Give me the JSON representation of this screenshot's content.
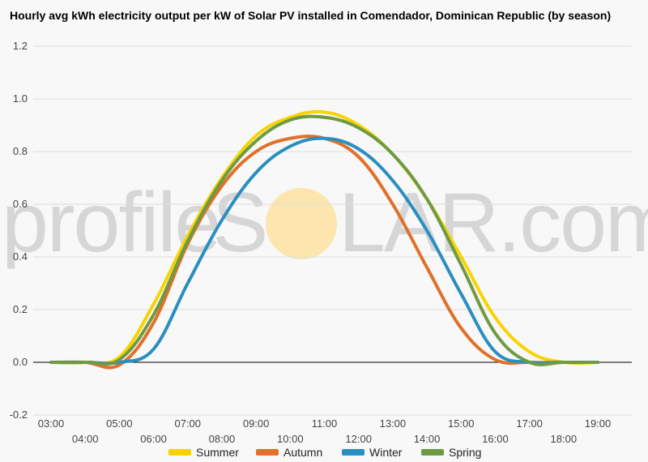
{
  "chart_data": {
    "type": "line",
    "title": "Hourly avg kWh electricity output per kW of Solar PV installed in Comendador, Dominican Republic (by season)",
    "xlabel": "",
    "ylabel": "",
    "categories": [
      "03:00",
      "04:00",
      "05:00",
      "06:00",
      "07:00",
      "08:00",
      "09:00",
      "10:00",
      "11:00",
      "12:00",
      "13:00",
      "14:00",
      "15:00",
      "16:00",
      "17:00",
      "18:00",
      "19:00"
    ],
    "ylim": [
      -0.2,
      1.2
    ],
    "yticks": [
      "-0.2",
      "0.0",
      "0.2",
      "0.4",
      "0.6",
      "0.8",
      "1.0",
      "1.2"
    ],
    "grid": true,
    "legend_position": "bottom",
    "series": [
      {
        "name": "Summer",
        "color": "#f7d400",
        "values": [
          0,
          0,
          0.02,
          0.22,
          0.48,
          0.7,
          0.86,
          0.93,
          0.95,
          0.9,
          0.79,
          0.62,
          0.4,
          0.17,
          0.04,
          0.0,
          0.0
        ]
      },
      {
        "name": "Autumn",
        "color": "#e0702a",
        "values": [
          0,
          0,
          -0.01,
          0.15,
          0.45,
          0.67,
          0.8,
          0.85,
          0.85,
          0.78,
          0.6,
          0.36,
          0.13,
          0.01,
          0,
          0,
          0
        ]
      },
      {
        "name": "Winter",
        "color": "#2a8fc0",
        "values": [
          0,
          0,
          0.0,
          0.05,
          0.3,
          0.54,
          0.72,
          0.82,
          0.85,
          0.81,
          0.69,
          0.5,
          0.26,
          0.04,
          0,
          0,
          0
        ]
      },
      {
        "name": "Spring",
        "color": "#6e9a44",
        "values": [
          0,
          0,
          0.01,
          0.18,
          0.46,
          0.69,
          0.84,
          0.92,
          0.93,
          0.89,
          0.79,
          0.62,
          0.37,
          0.11,
          0,
          0,
          0
        ]
      }
    ]
  },
  "watermark": {
    "part1": "profile",
    "part2": "S",
    "part3": "LAR.com",
    "sun_color": "#fde3a0"
  },
  "colors": {
    "grid": "#dddddd",
    "zero_line": "#000000",
    "background": "#f8f8f8"
  }
}
